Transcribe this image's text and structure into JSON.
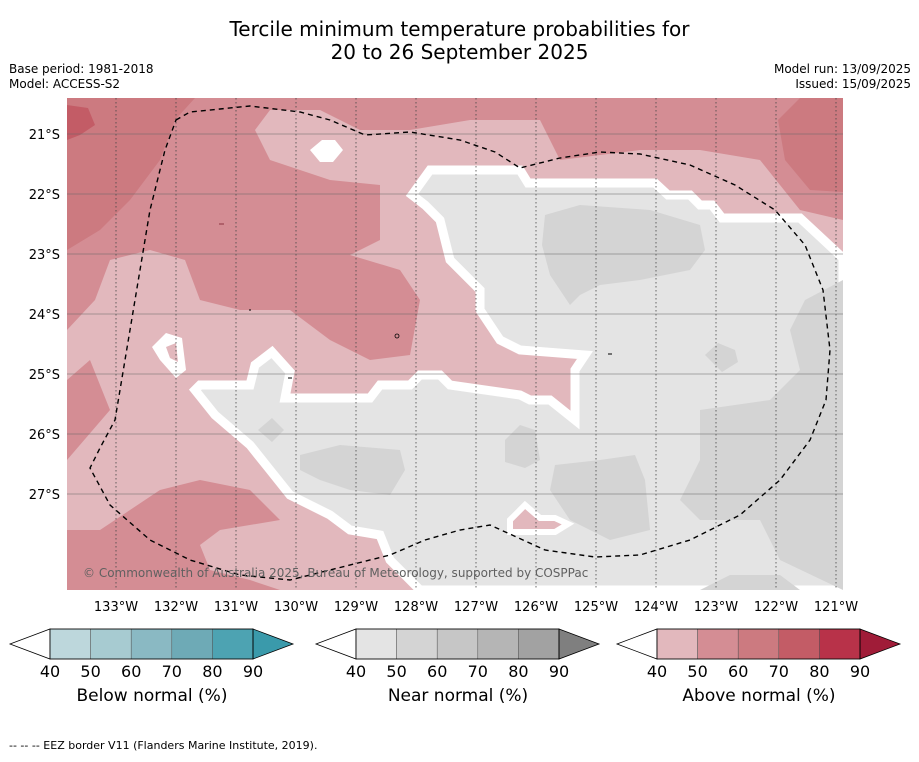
{
  "title_line1": "Tercile minimum temperature probabilities for",
  "title_line2": "20 to 26 September 2025",
  "base_period": "Base period: 1981-2018",
  "model": "Model: ACCESS-S2",
  "model_run": "Model run: 13/09/2025",
  "issued": "Issued: 15/09/2025",
  "copyright": "© Commonwealth of Australia 2025, Bureau of Meteorology, supported by COSPPac",
  "footer": "--  --  -- EEZ border V11 (Flanders Marine Institute, 2019).",
  "lat_labels": [
    "21°S",
    "22°S",
    "23°S",
    "24°S",
    "25°S",
    "26°S",
    "27°S"
  ],
  "lon_labels": [
    "133°W",
    "132°W",
    "131°W",
    "130°W",
    "129°W",
    "128°W",
    "127°W",
    "126°W",
    "125°W",
    "124°W",
    "123°W",
    "122°W",
    "121°W"
  ],
  "colorbars": [
    {
      "label": "Below normal (%)",
      "ticks": [
        "40",
        "50",
        "60",
        "70",
        "80",
        "90"
      ],
      "colors": [
        "#bdd7dc",
        "#a7cbd1",
        "#8ab9c3",
        "#6eaab6",
        "#4da3b2",
        "#3a9aab"
      ]
    },
    {
      "label": "Near normal (%)",
      "ticks": [
        "40",
        "50",
        "60",
        "70",
        "80",
        "90"
      ],
      "colors": [
        "#e4e4e4",
        "#d4d4d4",
        "#c6c6c6",
        "#b5b5b5",
        "#a2a2a2",
        "#7f7f7f"
      ]
    },
    {
      "label": "Above normal (%)",
      "ticks": [
        "40",
        "50",
        "60",
        "70",
        "80",
        "90"
      ],
      "colors": [
        "#e2b8bd",
        "#d48d94",
        "#cc7a80",
        "#c35c66",
        "#b83249",
        "#a01c38"
      ]
    }
  ],
  "colors": {
    "above_40": "#e2b8bd",
    "above_50": "#d48d94",
    "above_60": "#cc7a80",
    "near_40": "#e4e4e4",
    "near_50": "#d4d4d4",
    "border": "#000000"
  }
}
